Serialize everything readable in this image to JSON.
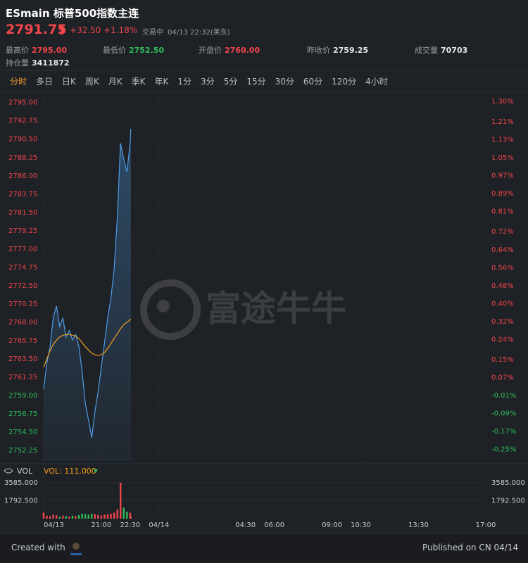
{
  "header": {
    "title": "ESmain 标普500指数主连",
    "price": "2791.75",
    "change": "+32.50",
    "change_pct": "+1.18%",
    "status": "交易中",
    "time": "04/13 22:32(美东)",
    "stats": [
      {
        "label": "最高价",
        "value": "2795.00"
      },
      {
        "label": "最低价",
        "value": "2752.50"
      },
      {
        "label": "开盘价",
        "value": "2760.00"
      },
      {
        "label": "昨收价",
        "value": "2759.25"
      },
      {
        "label": "成交量",
        "value": "70703"
      },
      {
        "label": "持仓量",
        "value": "3411872"
      }
    ]
  },
  "tabs": [
    "分时",
    "多日",
    "日K",
    "周K",
    "月K",
    "季K",
    "年K",
    "1分",
    "3分",
    "5分",
    "15分",
    "30分",
    "60分",
    "120分",
    "4小时"
  ],
  "watermark": "富途牛牛",
  "chart_data": [
    {
      "type": "line",
      "x": [
        0,
        10,
        20,
        30,
        40,
        50,
        60,
        70,
        80,
        90,
        100,
        110,
        120,
        130,
        140,
        150,
        160,
        170,
        180,
        190,
        200,
        210,
        220,
        230,
        240,
        250,
        260,
        270,
        272
      ],
      "xlim": [
        0,
        1380
      ],
      "xticks": [
        {
          "value": 0,
          "label": "04/13"
        },
        {
          "value": 180,
          "label": "21:00"
        },
        {
          "value": 270,
          "label": "22:30"
        },
        {
          "value": 360,
          "label": "04/14"
        },
        {
          "value": 630,
          "label": "04:30"
        },
        {
          "value": 720,
          "label": "06:00"
        },
        {
          "value": 900,
          "label": "09:00"
        },
        {
          "value": 990,
          "label": "10:30"
        },
        {
          "value": 1170,
          "label": "13:30"
        },
        {
          "value": 1380,
          "label": "17:00"
        }
      ],
      "series": [
        {
          "color": "#4d9be6",
          "values": [
            2759.8,
            2763.0,
            2765.0,
            2768.6,
            2770.0,
            2767.5,
            2768.5,
            2766.2,
            2767.0,
            2765.8,
            2766.5,
            2765.0,
            2762.0,
            2758.0,
            2756.0,
            2753.8,
            2757.0,
            2759.5,
            2762.5,
            2765.5,
            2768.5,
            2771.0,
            2774.5,
            2781.0,
            2790.0,
            2788.0,
            2786.5,
            2790.0,
            2791.75
          ]
        },
        {
          "color": "#f0a020",
          "values": [
            2762.5,
            2763.5,
            2764.5,
            2765.3,
            2765.8,
            2766.2,
            2766.4,
            2766.5,
            2766.5,
            2766.4,
            2766.3,
            2766.0,
            2765.5,
            2765.0,
            2764.6,
            2764.2,
            2764.0,
            2763.9,
            2764.0,
            2764.3,
            2764.8,
            2765.4,
            2766.0,
            2766.6,
            2767.2,
            2767.7,
            2768.0,
            2768.3,
            2768.4
          ]
        }
      ],
      "ylim": [
        2750.95,
        2796.1
      ],
      "yticks": [
        {
          "value": 2795,
          "label": "2795.00"
        },
        {
          "value": 2792.75,
          "label": "2792.75"
        },
        {
          "value": 2790.5,
          "label": "2790.50"
        },
        {
          "value": 2788.25,
          "label": "2788.25"
        },
        {
          "value": 2786,
          "label": "2786.00"
        },
        {
          "value": 2783.75,
          "label": "2783.75"
        },
        {
          "value": 2781.5,
          "label": "2781.50"
        },
        {
          "value": 2779.25,
          "label": "2779.25"
        },
        {
          "value": 2777,
          "label": "2777.00"
        },
        {
          "value": 2774.75,
          "label": "2774.75"
        },
        {
          "value": 2772.5,
          "label": "2772.50"
        },
        {
          "value": 2770.25,
          "label": "2770.25"
        },
        {
          "value": 2768,
          "label": "2768.00"
        },
        {
          "value": 2765.75,
          "label": "2765.75"
        },
        {
          "value": 2763.5,
          "label": "2763.50"
        },
        {
          "value": 2761.25,
          "label": "2761.25"
        },
        {
          "value": 2759,
          "label": "2759.00"
        },
        {
          "value": 2756.75,
          "label": "2756.75"
        },
        {
          "value": 2754.5,
          "label": "2754.50"
        },
        {
          "value": 2752.25,
          "label": "2752.25"
        }
      ],
      "y2lim": [
        -0.301,
        1.335
      ],
      "y2ticks": [
        {
          "value": 1.3,
          "label": "1.30%"
        },
        {
          "value": 1.21,
          "label": "1.21%"
        },
        {
          "value": 1.13,
          "label": "1.13%"
        },
        {
          "value": 1.05,
          "label": "1.05%"
        },
        {
          "value": 0.97,
          "label": "0.97%"
        },
        {
          "value": 0.89,
          "label": "0.89%"
        },
        {
          "value": 0.81,
          "label": "0.81%"
        },
        {
          "value": 0.72,
          "label": "0.72%"
        },
        {
          "value": 0.64,
          "label": "0.64%"
        },
        {
          "value": 0.56,
          "label": "0.56%"
        },
        {
          "value": 0.48,
          "label": "0.48%"
        },
        {
          "value": 0.4,
          "label": "0.40%"
        },
        {
          "value": 0.32,
          "label": "0.32%"
        },
        {
          "value": 0.24,
          "label": "0.24%"
        },
        {
          "value": 0.15,
          "label": "0.15%"
        },
        {
          "value": 0.07,
          "label": "0.07%"
        },
        {
          "value": -0.01,
          "label": "-0.01%"
        },
        {
          "value": -0.09,
          "label": "-0.09%"
        },
        {
          "value": -0.17,
          "label": "-0.17%"
        },
        {
          "value": -0.25,
          "label": "-0.25%"
        }
      ],
      "grid": true
    },
    {
      "type": "bar",
      "title": "VOL",
      "legend": "VOL: 111.000",
      "x": [
        0,
        10,
        20,
        30,
        40,
        50,
        60,
        70,
        80,
        90,
        100,
        110,
        120,
        130,
        140,
        150,
        160,
        170,
        180,
        190,
        200,
        210,
        220,
        230,
        240,
        250,
        260,
        270,
        272
      ],
      "values": [
        600,
        300,
        250,
        400,
        350,
        200,
        300,
        250,
        200,
        300,
        250,
        350,
        500,
        450,
        400,
        500,
        450,
        350,
        300,
        400,
        450,
        500,
        600,
        900,
        3585,
        1100,
        700,
        600,
        200
      ],
      "up_color": "#f0464b",
      "down_color": "#2dbd5a",
      "xlim": [
        0,
        1380
      ],
      "ylim": [
        0,
        3585
      ],
      "yticks": [
        {
          "value": 3585,
          "label": "3585.000"
        },
        {
          "value": 1792.5,
          "label": "1792.500"
        }
      ]
    }
  ],
  "footer": {
    "created": "Created with",
    "published": "Published on CN 04/14"
  }
}
